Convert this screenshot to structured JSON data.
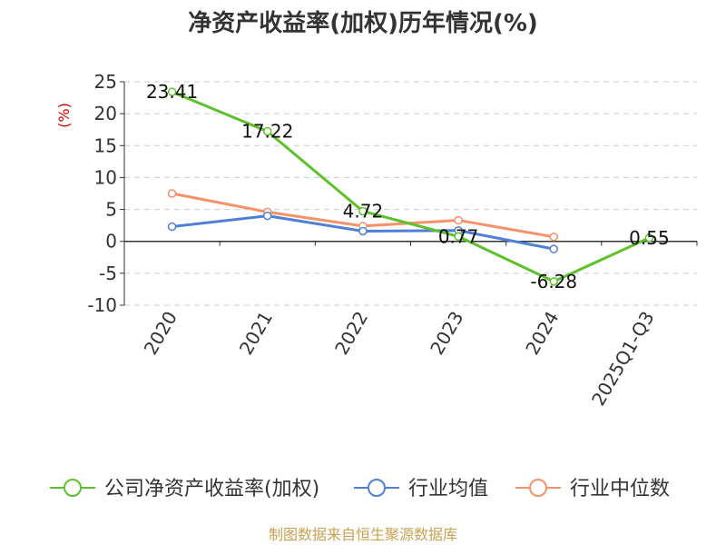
{
  "chart_data": {
    "type": "line",
    "title": "净资产收益率(加权)历年情况(%)",
    "ylabel": "(%)",
    "categories": [
      "2020",
      "2021",
      "2022",
      "2023",
      "2024",
      "2025Q1-Q3"
    ],
    "ylim": [
      -10,
      25
    ],
    "yticks": [
      "25",
      "20",
      "15",
      "10",
      "5",
      "0",
      "-5",
      "-10"
    ],
    "grid": true,
    "legend_position": "bottom",
    "series": [
      {
        "name": "公司净资产收益率(加权)",
        "color": "#5ec12a",
        "values": [
          23.41,
          17.22,
          4.72,
          0.77,
          -6.28,
          0.55
        ],
        "labels": [
          "23.41",
          "17.22",
          "4.72",
          "0.77",
          "-6.28",
          "0.55"
        ]
      },
      {
        "name": "行业均值",
        "color": "#4e80d8",
        "values": [
          2.3,
          4.0,
          1.6,
          1.7,
          -1.2,
          null
        ]
      },
      {
        "name": "行业中位数",
        "color": "#f69169",
        "values": [
          7.5,
          4.6,
          2.4,
          3.3,
          0.7,
          null
        ]
      }
    ]
  },
  "source": "制图数据来自恒生聚源数据库"
}
